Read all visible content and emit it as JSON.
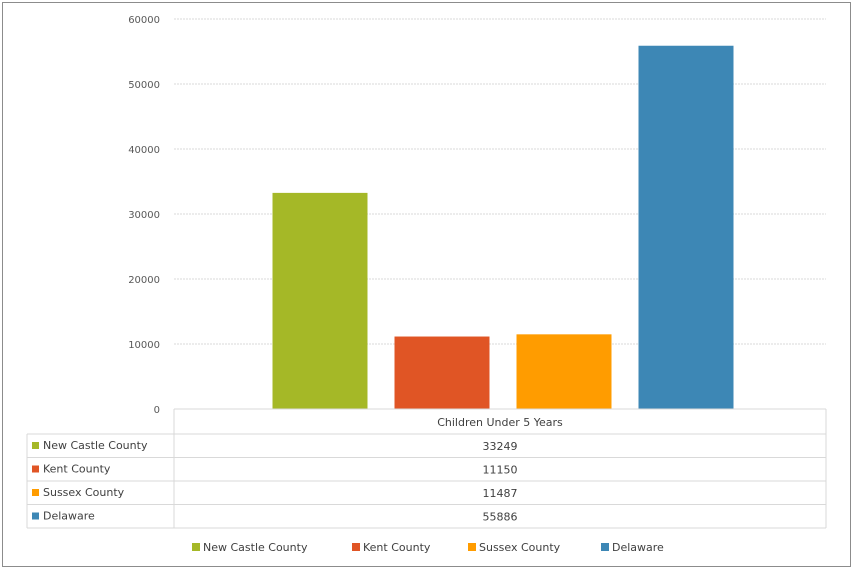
{
  "chart_data": {
    "type": "bar",
    "categories": [
      "Children Under 5 Years"
    ],
    "series": [
      {
        "name": "New Castle County",
        "values": [
          33249
        ],
        "color": "#a5b827"
      },
      {
        "name": "Kent County",
        "values": [
          11150
        ],
        "color": "#e05525"
      },
      {
        "name": "Sussex County",
        "values": [
          11487
        ],
        "color": "#ff9c00"
      },
      {
        "name": "Delaware",
        "values": [
          55886
        ],
        "color": "#3d87b5"
      }
    ],
    "title": "",
    "xlabel": "",
    "ylabel": "",
    "ylim": [
      0,
      60000
    ],
    "yticks": [
      0,
      10000,
      20000,
      30000,
      40000,
      50000,
      60000
    ],
    "grid": true,
    "legend_position": "bottom",
    "data_table": true
  }
}
